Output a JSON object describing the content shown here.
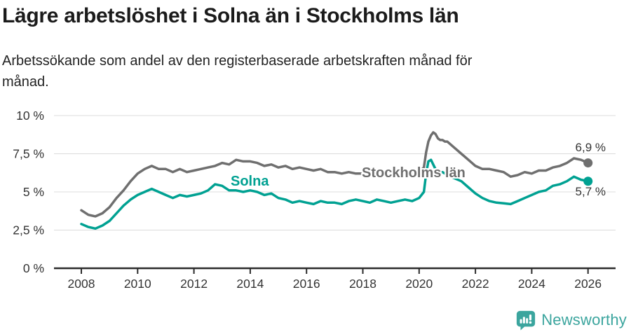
{
  "header": {
    "title": "Lägre arbetslöshet i Solna än i Stockholms län",
    "subtitle": "Arbetssökande som andel av den registerbaserade arbetskraften månad för månad."
  },
  "chart_data": {
    "type": "line",
    "title": "Lägre arbetslöshet i Solna än i Stockholms län",
    "xlabel": "",
    "ylabel": "",
    "unit": "%",
    "ylim": [
      0,
      10
    ],
    "xlim": [
      2007,
      2027
    ],
    "grid": "horizontal",
    "legend_position": "inline-labels",
    "y_ticks": [
      {
        "value": 0,
        "label": "0 %"
      },
      {
        "value": 2.5,
        "label": "2,5 %"
      },
      {
        "value": 5,
        "label": "5 %"
      },
      {
        "value": 7.5,
        "label": "7,5 %"
      },
      {
        "value": 10,
        "label": "10 %"
      }
    ],
    "x_ticks": [
      {
        "value": 2008,
        "label": "2008"
      },
      {
        "value": 2010,
        "label": "2010"
      },
      {
        "value": 2012,
        "label": "2012"
      },
      {
        "value": 2014,
        "label": "2014"
      },
      {
        "value": 2016,
        "label": "2016"
      },
      {
        "value": 2018,
        "label": "2018"
      },
      {
        "value": 2020,
        "label": "2020"
      },
      {
        "value": 2022,
        "label": "2022"
      },
      {
        "value": 2024,
        "label": "2024"
      },
      {
        "value": 2026,
        "label": "2026"
      }
    ],
    "x": [
      2008.0,
      2008.25,
      2008.5,
      2008.75,
      2009.0,
      2009.25,
      2009.5,
      2009.75,
      2010.0,
      2010.25,
      2010.5,
      2010.75,
      2011.0,
      2011.25,
      2011.5,
      2011.75,
      2012.0,
      2012.25,
      2012.5,
      2012.75,
      2013.0,
      2013.25,
      2013.5,
      2013.75,
      2014.0,
      2014.25,
      2014.5,
      2014.75,
      2015.0,
      2015.25,
      2015.5,
      2015.75,
      2016.0,
      2016.25,
      2016.5,
      2016.75,
      2017.0,
      2017.25,
      2017.5,
      2017.75,
      2018.0,
      2018.25,
      2018.5,
      2018.75,
      2019.0,
      2019.25,
      2019.5,
      2019.75,
      2020.0,
      2020.17,
      2020.25,
      2020.33,
      2020.42,
      2020.5,
      2020.58,
      2020.67,
      2020.75,
      2020.83,
      2020.92,
      2021.0,
      2021.25,
      2021.5,
      2021.75,
      2022.0,
      2022.25,
      2022.5,
      2022.75,
      2023.0,
      2023.25,
      2023.5,
      2023.75,
      2024.0,
      2024.25,
      2024.5,
      2024.75,
      2025.0,
      2025.25,
      2025.5,
      2025.75,
      2026.0
    ],
    "series": [
      {
        "name": "Stockholms län",
        "color": "#6f6f6f",
        "end_label": "6,9 %",
        "end_value": 6.9,
        "values": [
          3.8,
          3.5,
          3.4,
          3.6,
          4.0,
          4.6,
          5.1,
          5.7,
          6.2,
          6.5,
          6.7,
          6.5,
          6.5,
          6.3,
          6.5,
          6.3,
          6.4,
          6.5,
          6.6,
          6.7,
          6.9,
          6.8,
          7.1,
          7.0,
          7.0,
          6.9,
          6.7,
          6.8,
          6.6,
          6.7,
          6.5,
          6.6,
          6.5,
          6.4,
          6.5,
          6.3,
          6.3,
          6.2,
          6.3,
          6.2,
          6.2,
          6.0,
          6.2,
          6.1,
          6.1,
          6.2,
          6.3,
          6.2,
          6.3,
          6.6,
          7.6,
          8.3,
          8.7,
          8.9,
          8.8,
          8.5,
          8.4,
          8.4,
          8.3,
          8.3,
          7.9,
          7.5,
          7.1,
          6.7,
          6.5,
          6.5,
          6.4,
          6.3,
          6.0,
          6.1,
          6.3,
          6.2,
          6.4,
          6.4,
          6.6,
          6.7,
          6.9,
          7.2,
          7.1,
          6.9
        ]
      },
      {
        "name": "Solna",
        "color": "#00a192",
        "end_label": "5,7 %",
        "end_value": 5.7,
        "values": [
          2.9,
          2.7,
          2.6,
          2.8,
          3.1,
          3.6,
          4.1,
          4.5,
          4.8,
          5.0,
          5.2,
          5.0,
          4.8,
          4.6,
          4.8,
          4.7,
          4.8,
          4.9,
          5.1,
          5.5,
          5.4,
          5.1,
          5.1,
          5.0,
          5.1,
          5.0,
          4.8,
          4.9,
          4.6,
          4.5,
          4.3,
          4.4,
          4.3,
          4.2,
          4.4,
          4.3,
          4.3,
          4.2,
          4.4,
          4.5,
          4.4,
          4.3,
          4.5,
          4.4,
          4.3,
          4.4,
          4.5,
          4.4,
          4.6,
          5.0,
          6.2,
          7.0,
          7.1,
          6.8,
          6.5,
          6.4,
          6.3,
          6.3,
          6.2,
          6.1,
          5.9,
          5.7,
          5.3,
          4.9,
          4.6,
          4.4,
          4.3,
          4.25,
          4.2,
          4.4,
          4.6,
          4.8,
          5.0,
          5.1,
          5.4,
          5.5,
          5.7,
          6.0,
          5.8,
          5.7
        ]
      }
    ]
  },
  "footer": {
    "brand": "Newsworthy",
    "brand_color": "#3ba59e",
    "logo_icon": "bar-chart-speech-bubble"
  }
}
